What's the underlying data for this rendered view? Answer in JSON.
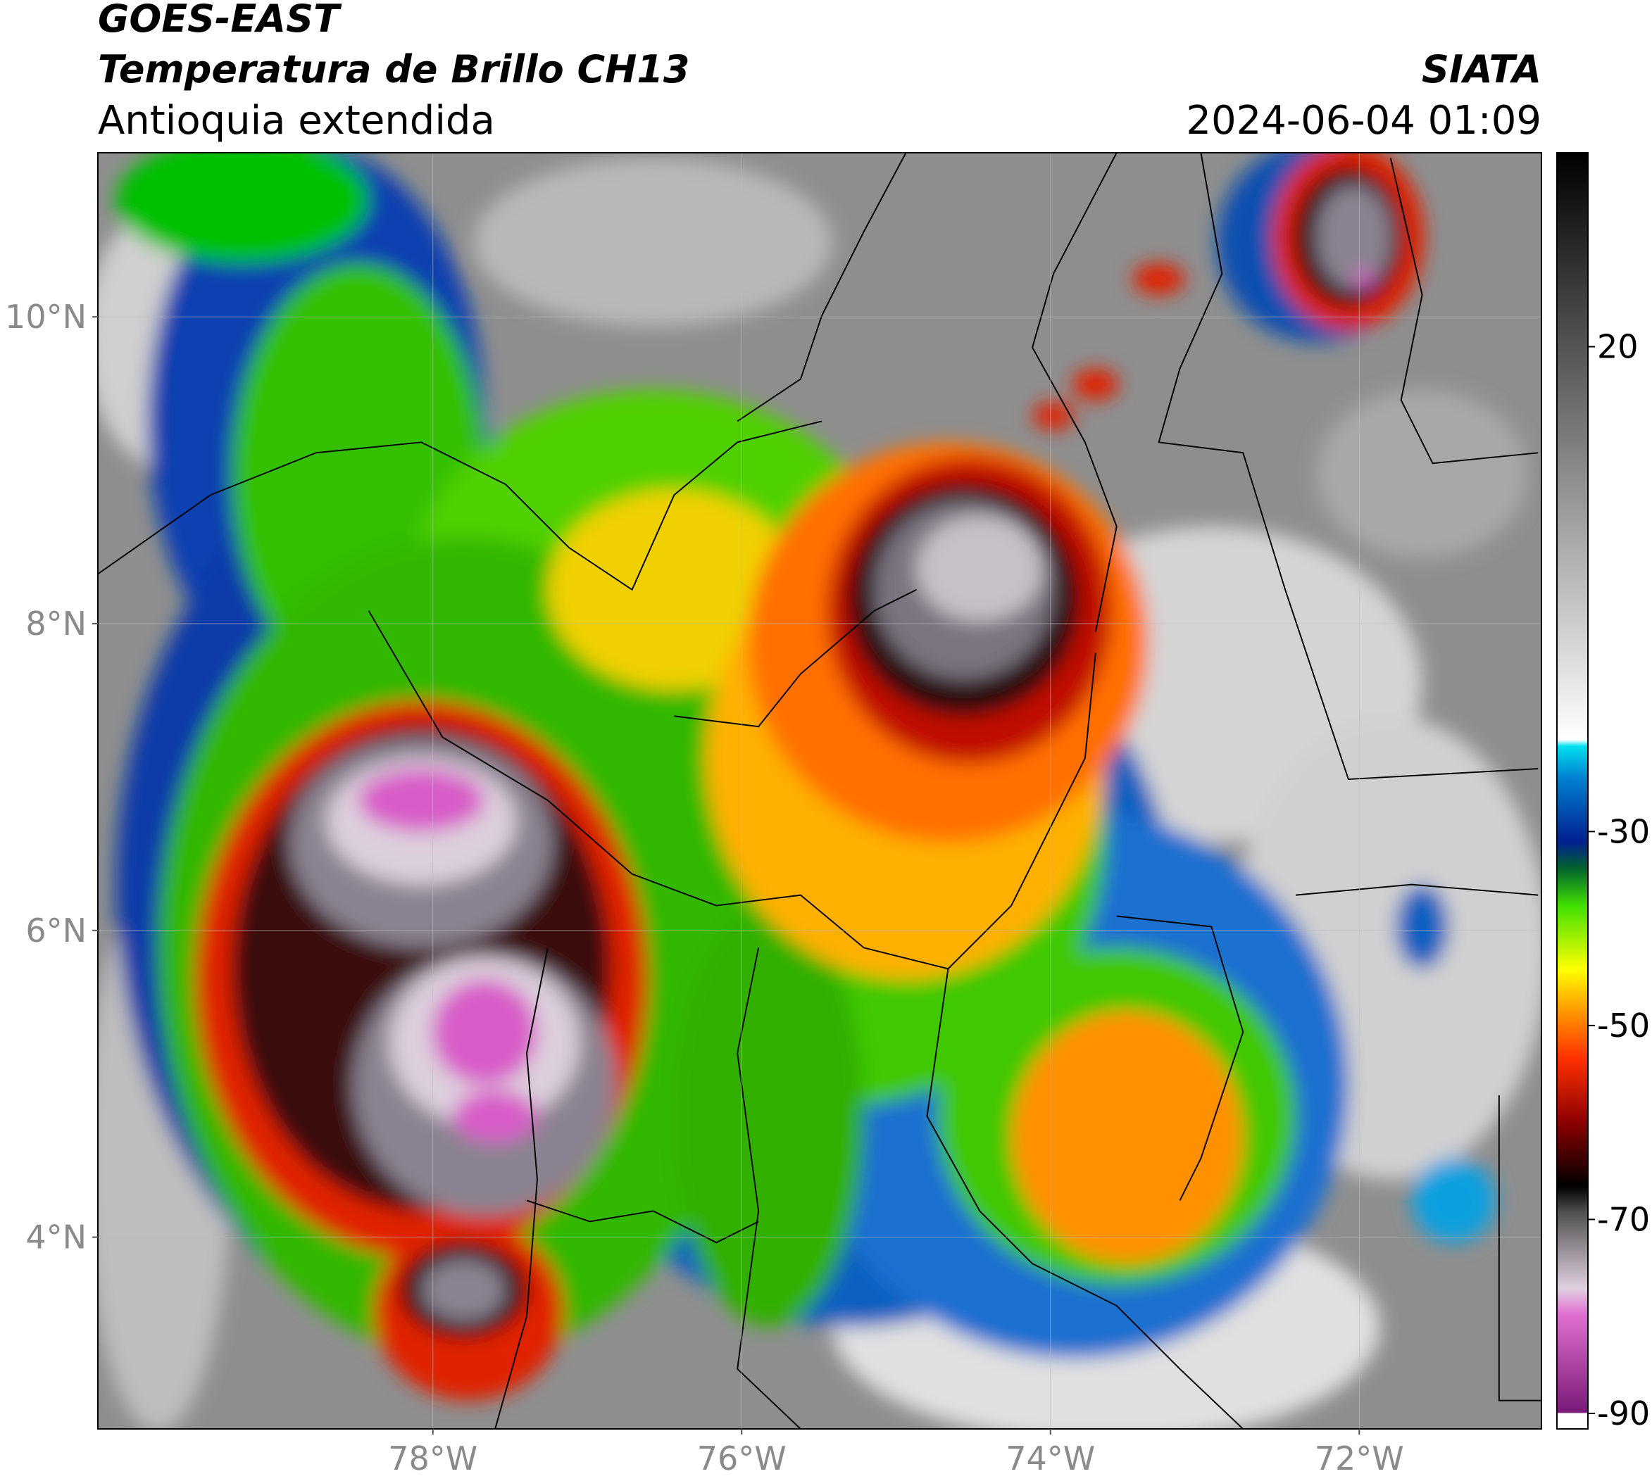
{
  "map": {
    "title": "GOES-EAST",
    "subtitle": "Temperatura de Brillo CH13",
    "region": "Antioquia extendida",
    "source": "SIATA",
    "datetime": "2024-06-04 01:09",
    "xlim": [
      -80.17,
      -70.82
    ],
    "ylim": [
      2.75,
      11.07
    ],
    "xticks": [
      {
        "value": -78,
        "label": "78°W"
      },
      {
        "value": -76,
        "label": "76°W"
      },
      {
        "value": -74,
        "label": "74°W"
      },
      {
        "value": -72,
        "label": "72°W"
      }
    ],
    "yticks": [
      {
        "value": 4,
        "label": "4°N"
      },
      {
        "value": 6,
        "label": "6°N"
      },
      {
        "value": 8,
        "label": "8°N"
      },
      {
        "value": 10,
        "label": "10°N"
      }
    ],
    "grid": true,
    "colorbar": {
      "lim": [
        -91.6,
        40
      ],
      "ticks": [
        -90,
        -70,
        -50,
        -30,
        20
      ]
    }
  }
}
